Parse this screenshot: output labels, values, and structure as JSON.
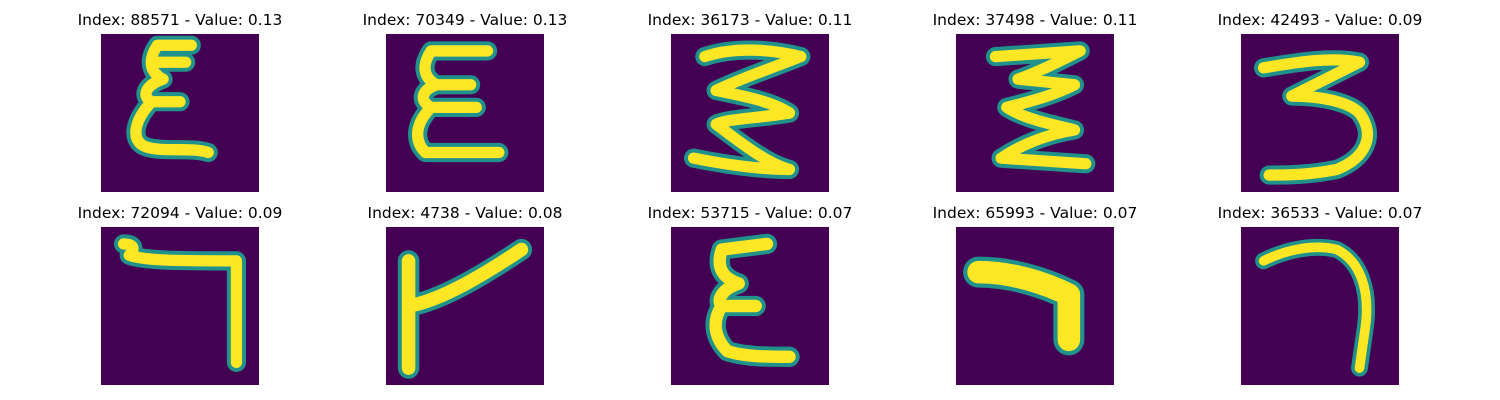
{
  "figure": {
    "colormap": "viridis",
    "background_color": "#440154",
    "foreground_color": "#fde725",
    "edge_color": "#21918c",
    "panels": [
      {
        "title": "Index: 88571 - Value: 0.13",
        "glyph": "epsilon"
      },
      {
        "title": "Index: 70349 - Value: 0.13",
        "glyph": "epsilon"
      },
      {
        "title": "Index: 36173 - Value: 0.11",
        "glyph": "zigzag-3"
      },
      {
        "title": "Index: 37498 - Value: 0.11",
        "glyph": "zigzag-3"
      },
      {
        "title": "Index: 42493 - Value: 0.09",
        "glyph": "three"
      },
      {
        "title": "Index: 72094 - Value: 0.09",
        "glyph": "hook-down"
      },
      {
        "title": "Index: 4738 - Value: 0.08",
        "glyph": "bracket"
      },
      {
        "title": "Index: 53715 - Value: 0.07",
        "glyph": "epsilon"
      },
      {
        "title": "Index: 65993 - Value: 0.07",
        "glyph": "thick-hook"
      },
      {
        "title": "Index: 36533 - Value: 0.07",
        "glyph": "arc-hook"
      }
    ]
  }
}
